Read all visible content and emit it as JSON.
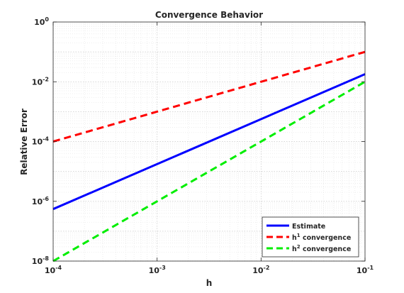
{
  "chart_data": {
    "type": "line",
    "title": "Convergence Behavior",
    "xlabel": "h",
    "ylabel": "Relative Error",
    "x_scale": "log",
    "y_scale": "log",
    "xlim": [
      0.0001,
      0.1
    ],
    "ylim": [
      1e-08,
      1
    ],
    "grid": true,
    "minor_grid": true,
    "legend_position": "bottom-right",
    "x_ticks": [
      {
        "value": 0.0001,
        "base": "10",
        "exp": "-4"
      },
      {
        "value": 0.001,
        "base": "10",
        "exp": "-3"
      },
      {
        "value": 0.01,
        "base": "10",
        "exp": "-2"
      },
      {
        "value": 0.1,
        "base": "10",
        "exp": "-1"
      }
    ],
    "y_ticks": [
      {
        "value": 1e-08,
        "base": "10",
        "exp": "-8"
      },
      {
        "value": 1e-06,
        "base": "10",
        "exp": "-6"
      },
      {
        "value": 0.0001,
        "base": "10",
        "exp": "-4"
      },
      {
        "value": 0.01,
        "base": "10",
        "exp": "-2"
      },
      {
        "value": 1,
        "base": "10",
        "exp": "0"
      }
    ],
    "series": [
      {
        "name": "Estimate",
        "legend_main": "Estimate",
        "legend_sup": "",
        "legend_rest": "",
        "color": "#0000ff",
        "dash": "solid",
        "x": [
          0.0001,
          0.1
        ],
        "y": [
          5.5e-07,
          0.018
        ]
      },
      {
        "name": "h1 convergence",
        "legend_main": "h",
        "legend_sup": "1",
        "legend_rest": " convergence",
        "color": "#ff0000",
        "dash": "dashed",
        "x": [
          0.0001,
          0.1
        ],
        "y": [
          0.0001,
          0.1
        ]
      },
      {
        "name": "h2 convergence",
        "legend_main": "h",
        "legend_sup": "2",
        "legend_rest": " convergence",
        "color": "#00ee00",
        "dash": "dashed",
        "x": [
          0.0001,
          0.1
        ],
        "y": [
          1e-08,
          0.01
        ]
      }
    ]
  }
}
